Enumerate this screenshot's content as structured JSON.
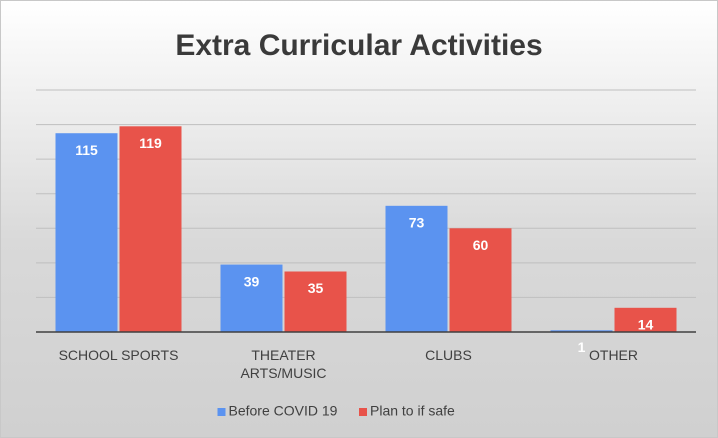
{
  "chart_data": {
    "type": "bar",
    "title": "Extra Curricular Activities",
    "categories": [
      "SCHOOL SPORTS",
      "THEATER ARTS/MUSIC",
      "CLUBS",
      "OTHER"
    ],
    "series": [
      {
        "name": "Before COVID 19",
        "color": "#5b93f0",
        "values": [
          115,
          39,
          73,
          1
        ]
      },
      {
        "name": "Plan to if safe",
        "color": "#e8534a",
        "values": [
          119,
          35,
          60,
          14
        ]
      }
    ],
    "ylim": [
      0,
      140
    ],
    "yticks": [
      0,
      20,
      40,
      60,
      80,
      100,
      120,
      140
    ],
    "grid": true,
    "legend": "bottom"
  }
}
